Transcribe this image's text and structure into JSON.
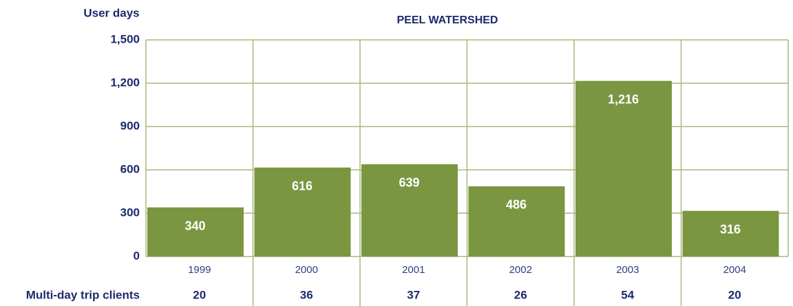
{
  "chart_data": {
    "type": "bar",
    "title": "PEEL WATERSHED",
    "y_label": "User days",
    "categories": [
      "1999",
      "2000",
      "2001",
      "2002",
      "2003",
      "2004"
    ],
    "values": [
      340,
      616,
      639,
      486,
      1216,
      316
    ],
    "value_labels": [
      "340",
      "616",
      "639",
      "486",
      "1,216",
      "316"
    ],
    "color": "#7a9641",
    "grid": true,
    "ylim": [
      0,
      1500
    ],
    "yticks": [
      0,
      300,
      600,
      900,
      {
        "value": 1200,
        "label": "1,200"
      },
      {
        "value": 1500,
        "label": "1,500"
      }
    ],
    "clients": {
      "label": "Multi-day trip clients",
      "values": [
        20,
        36,
        37,
        26,
        54,
        20
      ]
    }
  }
}
